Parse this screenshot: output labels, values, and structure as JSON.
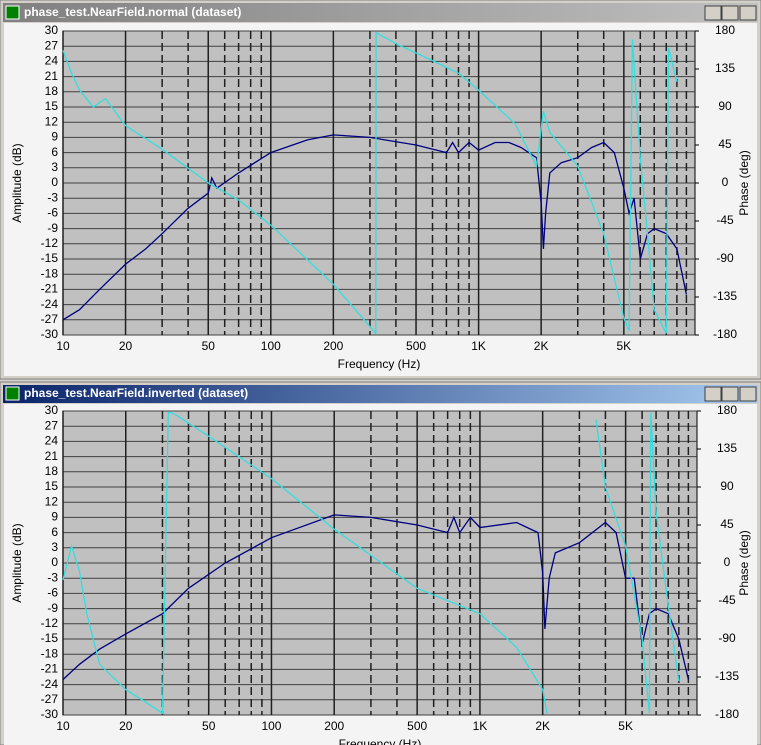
{
  "windows": [
    {
      "title": "phase_test.NearField.normal (dataset)"
    },
    {
      "title": "phase_test.NearField.inverted (dataset)"
    }
  ],
  "chart_data": [
    {
      "type": "line",
      "xlabel": "Frequency (Hz)",
      "ylabel": "Amplitude (dB)",
      "y2label": "Phase (deg)",
      "xscale": "log",
      "grid": true,
      "xlim": [
        10,
        11000
      ],
      "xticks": [
        10,
        20,
        50,
        100,
        200,
        500,
        {
          "value": 1000,
          "label": "1K"
        },
        {
          "value": 2000,
          "label": "2K"
        },
        {
          "value": 5000,
          "label": "5K"
        }
      ],
      "xminor_ticks": [
        30,
        40,
        60,
        70,
        80,
        90,
        300,
        400,
        600,
        700,
        800,
        900,
        3000,
        4000,
        6000,
        7000,
        8000,
        9000,
        10000
      ],
      "ylim": [
        -30,
        30
      ],
      "yticks": [
        30,
        27,
        24,
        21,
        18,
        15,
        12,
        9,
        6,
        3,
        0,
        -3,
        -6,
        -9,
        -12,
        -15,
        -18,
        -21,
        -24,
        -27,
        -30
      ],
      "y2lim": [
        -180,
        180
      ],
      "y2ticks": [
        180,
        135,
        90,
        45,
        0,
        -45,
        -90,
        -135,
        -180
      ],
      "series": [
        {
          "color": "#000080",
          "x": [
            10,
            12,
            15,
            20,
            25,
            30,
            40,
            50,
            52,
            55,
            70,
            100,
            150,
            200,
            300,
            500,
            700,
            750,
            800,
            900,
            1000,
            1200,
            1400,
            1600,
            1900,
            2000,
            2050,
            2100,
            2200,
            2500,
            3000,
            3500,
            4000,
            4500,
            5000,
            5300,
            5600,
            6000,
            6500,
            7000,
            8000,
            9000,
            10000
          ],
          "values": [
            -27,
            -25,
            -21,
            -16,
            -13,
            -10,
            -5,
            -2,
            1,
            -1,
            2,
            6,
            8.5,
            9.5,
            9,
            7.5,
            6,
            8,
            6,
            8,
            6.5,
            8,
            8,
            7,
            5,
            -4,
            -13,
            -6,
            2,
            4,
            5,
            7,
            8,
            6,
            -1,
            -6,
            -3,
            -15,
            -10,
            -9,
            -10,
            -13,
            -22
          ]
        },
        {
          "color": "#33dede",
          "axis": "y2",
          "x": [
            10,
            11,
            12,
            14,
            16,
            20,
            30,
            50,
            70,
            100,
            200,
            300,
            320,
            321,
            400,
            600,
            800,
            1000,
            1500,
            1900,
            2050,
            2200,
            3000,
            4000,
            5000,
            5300,
            5500,
            6000,
            6500,
            7000,
            8000,
            8200,
            9000
          ],
          "values": [
            157,
            130,
            110,
            90,
            100,
            68,
            40,
            0,
            -20,
            -50,
            -120,
            -170,
            -178,
            178,
            165,
            145,
            130,
            110,
            70,
            20,
            85,
            60,
            20,
            -60,
            -160,
            -175,
            170,
            30,
            -60,
            -150,
            -178,
            160,
            120
          ]
        }
      ]
    },
    {
      "type": "line",
      "xlabel": "Frequency (Hz)",
      "ylabel": "Amplitude (dB)",
      "y2label": "Phase (deg)",
      "xscale": "log",
      "grid": true,
      "xlim": [
        10,
        11000
      ],
      "xticks": [
        10,
        20,
        50,
        100,
        200,
        500,
        {
          "value": 1000,
          "label": "1K"
        },
        {
          "value": 2000,
          "label": "2K"
        },
        {
          "value": 5000,
          "label": "5K"
        }
      ],
      "xminor_ticks": [
        30,
        40,
        60,
        70,
        80,
        90,
        300,
        400,
        600,
        700,
        800,
        900,
        3000,
        4000,
        6000,
        7000,
        8000,
        9000,
        10000
      ],
      "ylim": [
        -30,
        30
      ],
      "yticks": [
        30,
        27,
        24,
        21,
        18,
        15,
        12,
        9,
        6,
        3,
        0,
        -3,
        -6,
        -9,
        -12,
        -15,
        -18,
        -21,
        -24,
        -27,
        -30
      ],
      "y2lim": [
        -180,
        180
      ],
      "y2ticks": [
        180,
        135,
        90,
        45,
        0,
        -45,
        -90,
        -135,
        -180
      ],
      "series": [
        {
          "color": "#000080",
          "x": [
            10,
            12,
            15,
            20,
            30,
            40,
            60,
            100,
            200,
            300,
            500,
            700,
            750,
            800,
            900,
            1000,
            1500,
            1900,
            2000,
            2050,
            2150,
            2300,
            3000,
            4000,
            4500,
            5000,
            5500,
            6000,
            6500,
            7000,
            8000,
            9000,
            10000
          ],
          "values": [
            -23,
            -20,
            -17,
            -14,
            -10,
            -5,
            0,
            5,
            9.5,
            9,
            7.5,
            6,
            9,
            6,
            9,
            7,
            8,
            6,
            -2,
            -13,
            -3,
            2,
            4,
            8,
            6,
            -3,
            -3,
            -16,
            -10,
            -9,
            -10,
            -15,
            -23
          ]
        },
        {
          "color": "#33dede",
          "axis": "y2",
          "x": [
            10,
            11,
            12,
            13,
            15,
            20,
            25,
            30,
            32,
            33,
            35,
            50,
            100,
            200,
            500,
            1000,
            1500,
            2000,
            2100,
            3500,
            3600,
            4000,
            5000,
            6000,
            6500,
            6600,
            7000,
            8000,
            9000
          ],
          "values": [
            -20,
            20,
            -10,
            -60,
            -120,
            -150,
            -165,
            -178,
            178,
            178,
            175,
            150,
            100,
            40,
            -30,
            -60,
            -100,
            -150,
            -178,
            null,
            170,
            90,
            20,
            -90,
            -178,
            178,
            60,
            -50,
            -140
          ]
        }
      ]
    }
  ]
}
